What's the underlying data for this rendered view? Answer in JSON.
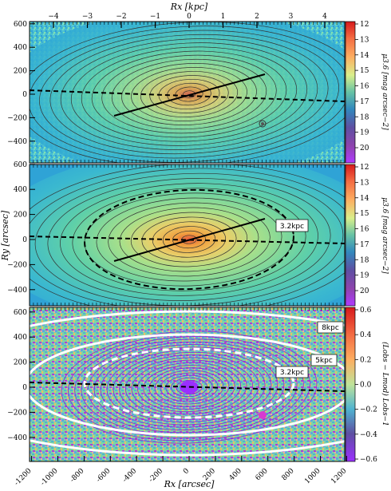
{
  "figure": {
    "top_axis_label": "Rx [kpc]",
    "bottom_axis_label": "Rx [arcsec]",
    "left_axis_label": "Ry [arcsec]",
    "top_ticks": [
      "−4",
      "−3",
      "−2",
      "−1",
      "0",
      "1",
      "2",
      "3",
      "4"
    ],
    "bottom_ticks": [
      "-1200",
      "-1000",
      "-800",
      "-600",
      "-400",
      "-200",
      "0",
      "200",
      "400",
      "600",
      "800",
      "1000",
      "1200"
    ],
    "y_ticks": [
      "600",
      "400",
      "200",
      "0",
      "−200",
      "−400"
    ],
    "colors": {
      "map_base": "#4fc9c0",
      "map_core": "#e89a3a",
      "contour": "#333333",
      "ellipse_white": "#ffffff",
      "residual_purple": "#8b2fd6"
    }
  },
  "panels": [
    {
      "id": "surface-brightness-map",
      "colorbar_label": "μ3.6 [mag arcsec−2]",
      "colorbar_ticks": [
        "12",
        "13",
        "14",
        "15",
        "16",
        "17",
        "18",
        "19",
        "20"
      ],
      "annotations": []
    },
    {
      "id": "model-map",
      "colorbar_label": "μ3.6 [mag arcsec−2]",
      "colorbar_ticks": [
        "12",
        "13",
        "14",
        "15",
        "16",
        "17",
        "18",
        "19",
        "20"
      ],
      "annotations": [
        "3.2kpc"
      ]
    },
    {
      "id": "residual-map",
      "colorbar_label": "(Lobs − Lmod) Lobs−1",
      "colorbar_ticks": [
        "0.6",
        "0.4",
        "0.2",
        "0.0",
        "−0.2",
        "−0.4",
        "−0.6"
      ],
      "annotations": [
        "8kpc",
        "5kpc",
        "3.2kpc"
      ]
    }
  ]
}
